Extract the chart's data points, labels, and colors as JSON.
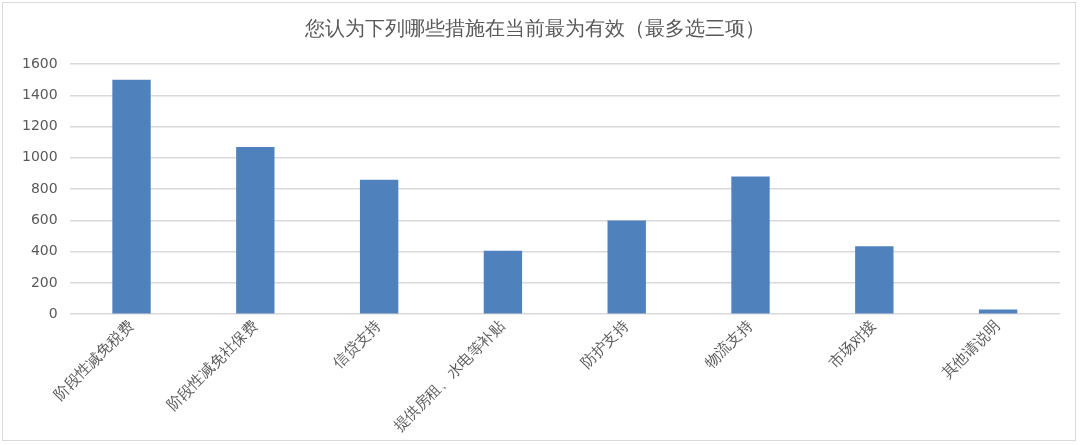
{
  "chart_data": {
    "type": "bar",
    "title": "您认为下列哪些措施在当前最为有效（最多选三项）",
    "categories": [
      "阶段性减免税费",
      "阶段性减免社保费",
      "信贷支持",
      "提供房租、水电等补贴",
      "防护支持",
      "物流支持",
      "市场对接",
      "其他请说明"
    ],
    "values": [
      1500,
      1070,
      860,
      405,
      600,
      880,
      435,
      30
    ],
    "color": "#4f81bd",
    "ylim": [
      0,
      1600
    ],
    "yticks": [
      0,
      200,
      400,
      600,
      800,
      1000,
      1200,
      1400,
      1600
    ],
    "grid": "y"
  }
}
